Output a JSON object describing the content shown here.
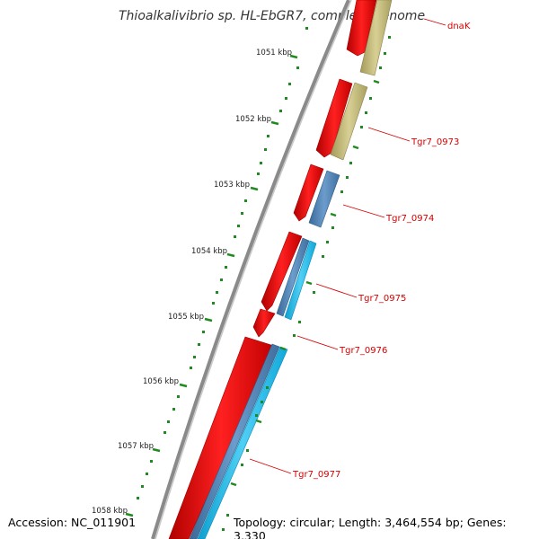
{
  "title": "Thioalkalivibrio sp. HL-EbGR7, complete genome",
  "accession": "Accession: NC_011901",
  "topology": "Topology: circular; Length: 3,464,554 bp; Genes: 3,330",
  "ticks": [
    "1051 kbp",
    "1052 kbp",
    "1053 kbp",
    "1054 kbp",
    "1055 kbp",
    "1056 kbp",
    "1057 kbp",
    "1058 kbp"
  ],
  "genes": [
    "dnaK",
    "Tgr7_0973",
    "Tgr7_0974",
    "Tgr7_0975",
    "Tgr7_0976",
    "Tgr7_0977"
  ],
  "colors": {
    "backbone": "#8a8a8a",
    "gene_forward": "#ff0000",
    "track_olive": "#c8bd7a",
    "track_steel": "#4f86b8",
    "track_cyan": "#19b8e8",
    "tick_marks": "#1f8a1f",
    "label_red": "#d40000"
  }
}
